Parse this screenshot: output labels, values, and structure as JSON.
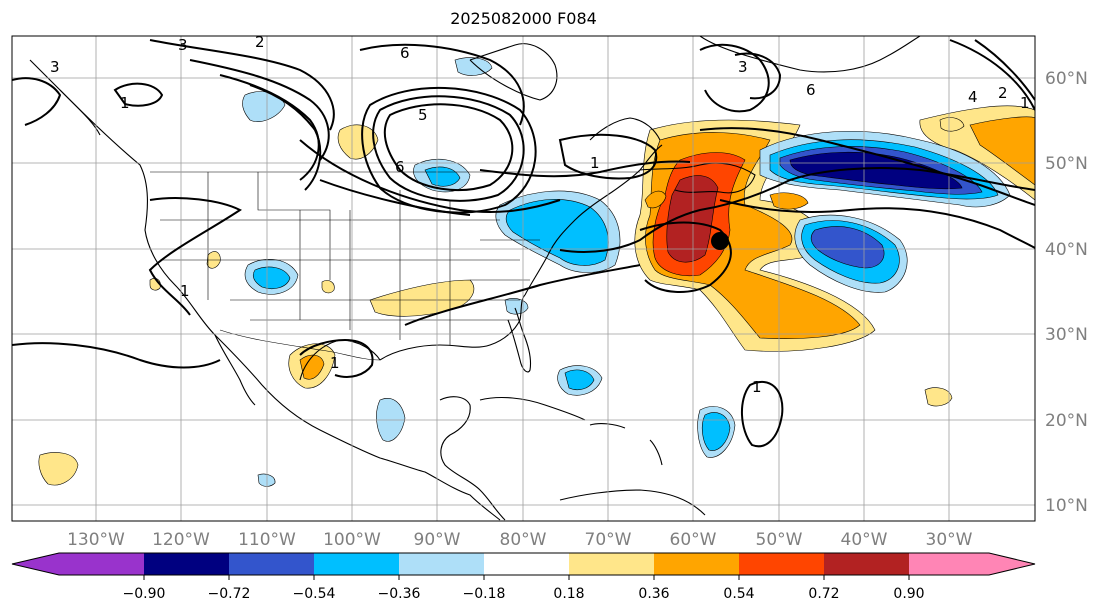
{
  "title": "2025082000 F084",
  "lat_labels": [
    "60°N",
    "50°N",
    "40°N",
    "30°N",
    "20°N",
    "10°N"
  ],
  "lon_labels": [
    "130°W",
    "120°W",
    "110°W",
    "100°W",
    "90°W",
    "80°W",
    "70°W",
    "60°W",
    "50°W",
    "40°W",
    "30°W"
  ],
  "colorbar": {
    "ticks": [
      "−0.90",
      "−0.72",
      "−0.54",
      "−0.36",
      "−0.18",
      "0.18",
      "0.36",
      "0.54",
      "0.72",
      "0.90"
    ],
    "colors": [
      "#9933cc",
      "#000080",
      "#3355cc",
      "#00bfff",
      "#aedff8",
      "#ffffff",
      "#ffe68a",
      "#ffa500",
      "#ff4500",
      "#b22222",
      "#ff85b5"
    ]
  },
  "contour_labels": [
    "3",
    "2",
    "6",
    "5",
    "1",
    "1",
    "3",
    "6",
    "4",
    "2",
    "1",
    "3",
    "1",
    "1",
    "1",
    "6"
  ],
  "marker": {
    "lat": 41,
    "lon": "57°W",
    "color": "#000000"
  }
}
